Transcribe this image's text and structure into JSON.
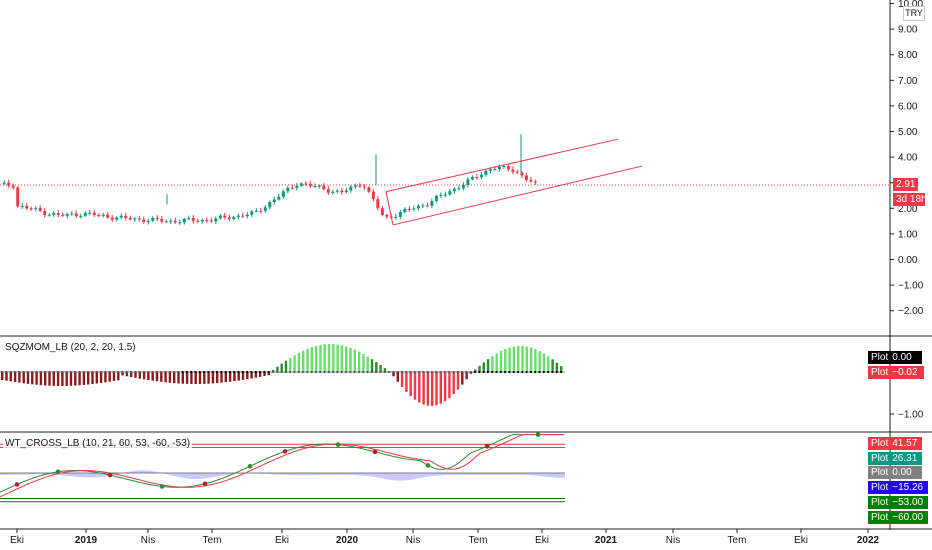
{
  "chart_data": [
    {
      "type": "candlestick",
      "title": "",
      "currency": "TRY",
      "y_ticks": [
        "10.00",
        "9.00",
        "8.00",
        "7.00",
        "6.00",
        "5.00",
        "4.00",
        "3.00",
        "2.00",
        "1.00",
        "0.00",
        "−1.00",
        "−2.00"
      ],
      "x_ticks": [
        "Eki",
        "2019",
        "Nis",
        "Tem",
        "Eki",
        "2020",
        "Nis",
        "Tem",
        "Eki",
        "2021",
        "Nis",
        "Tem",
        "Eki",
        "2022"
      ],
      "last_price": "2.91",
      "countdown": "3d 18h",
      "channel": "ascending parallel channel (red)",
      "approx_close_path": [
        {
          "date": "2018-10",
          "close": 2.1
        },
        {
          "date": "2018-12",
          "close": 1.7
        },
        {
          "date": "2019-01",
          "close": 1.8
        },
        {
          "date": "2019-03",
          "close": 1.6
        },
        {
          "date": "2019-05",
          "close": 1.5
        },
        {
          "date": "2019-07",
          "close": 1.55
        },
        {
          "date": "2019-09",
          "close": 1.8
        },
        {
          "date": "2019-11",
          "close": 3.0
        },
        {
          "date": "2020-01",
          "close": 2.6
        },
        {
          "date": "2020-02",
          "close": 3.0
        },
        {
          "date": "2020-03",
          "close": 1.6
        },
        {
          "date": "2020-05",
          "close": 2.2
        },
        {
          "date": "2020-07",
          "close": 3.1
        },
        {
          "date": "2020-08",
          "close": 3.6
        },
        {
          "date": "2020-09",
          "close": 3.5
        },
        {
          "date": "2020-10",
          "close": 2.91
        }
      ]
    },
    {
      "type": "histogram",
      "title": "SQZMOM_LB (20, 2, 20, 1.5)",
      "y_ticks": [
        "−1.00"
      ],
      "legend": [
        {
          "label": "Plot",
          "value": "0.00",
          "color": "#000000"
        },
        {
          "label": "Plot",
          "value": "−0.02",
          "color": "#f23645"
        }
      ]
    },
    {
      "type": "line",
      "title": "WT_CROSS_LB (10, 21, 60, 53, -60, -53)",
      "legend": [
        {
          "label": "Plot",
          "value": "41.57",
          "color": "#f23645"
        },
        {
          "label": "Plot",
          "value": "26.31",
          "color": "#089981"
        },
        {
          "label": "Plot",
          "value": "0.00",
          "color": "#808080"
        },
        {
          "label": "Plot",
          "value": "−15.26",
          "color": "#2200ff"
        },
        {
          "label": "Plot",
          "value": "−53.00",
          "color": "#008000"
        },
        {
          "label": "Plot",
          "value": "−60.00",
          "color": "#008000"
        }
      ]
    }
  ]
}
